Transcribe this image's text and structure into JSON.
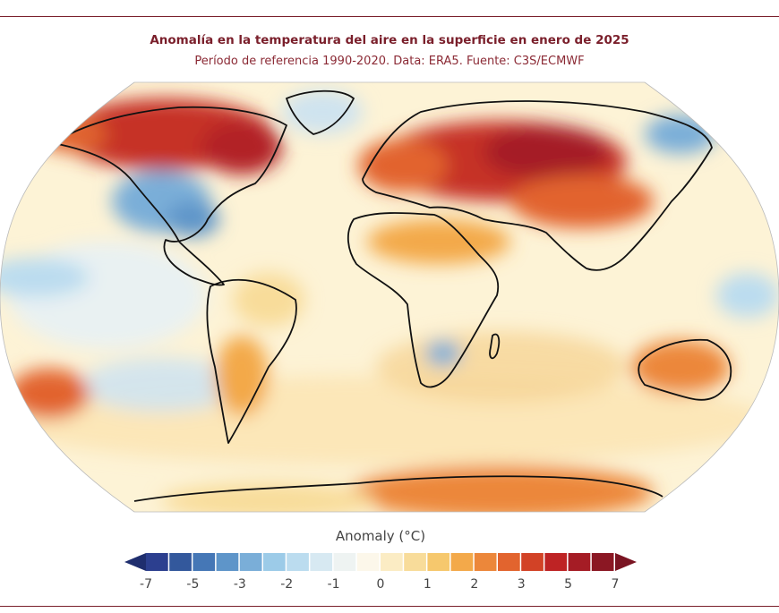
{
  "map": {
    "title": "Anomalía en la temperatura del aire en la superficie en enero de 2025",
    "subtitle": "Período de referencia 1990-2020. Data: ERA5. Fuente: C3S/ECMWF",
    "projection": "Robinson",
    "colors": {
      "rule": "#7a1f2b",
      "ocean_base": "#fdf3d6",
      "coastline": "#111111"
    }
  },
  "legend": {
    "title": "Anomaly (°C)",
    "tick_labels": [
      "-7",
      "-5",
      "-3",
      "-2",
      "-1",
      "0",
      "1",
      "2",
      "3",
      "5",
      "7"
    ],
    "colors": [
      "#2c3f8f",
      "#33589c",
      "#4577b6",
      "#5e95c9",
      "#7aaed8",
      "#9ccbe8",
      "#bbdcef",
      "#d7e9f2",
      "#eef3f2",
      "#fcf7ea",
      "#fbecc4",
      "#f8dc9a",
      "#f6c86d",
      "#f3a94a",
      "#ec873a",
      "#e2642e",
      "#d24226",
      "#be2324",
      "#a51c25",
      "#8b1723"
    ]
  },
  "regions": [
    {
      "name": "canada-arctic-warm",
      "level": "very warm"
    },
    {
      "name": "siberia-warm",
      "level": "very warm"
    },
    {
      "name": "eastern-us-cold",
      "level": "cold"
    },
    {
      "name": "east-siberia-cold",
      "level": "cold"
    },
    {
      "name": "australia-warm",
      "level": "warm"
    },
    {
      "name": "antarctica-warm",
      "level": "warm"
    },
    {
      "name": "south-pacific-warm",
      "level": "warm"
    },
    {
      "name": "southern-africa-cold",
      "level": "cool"
    }
  ]
}
